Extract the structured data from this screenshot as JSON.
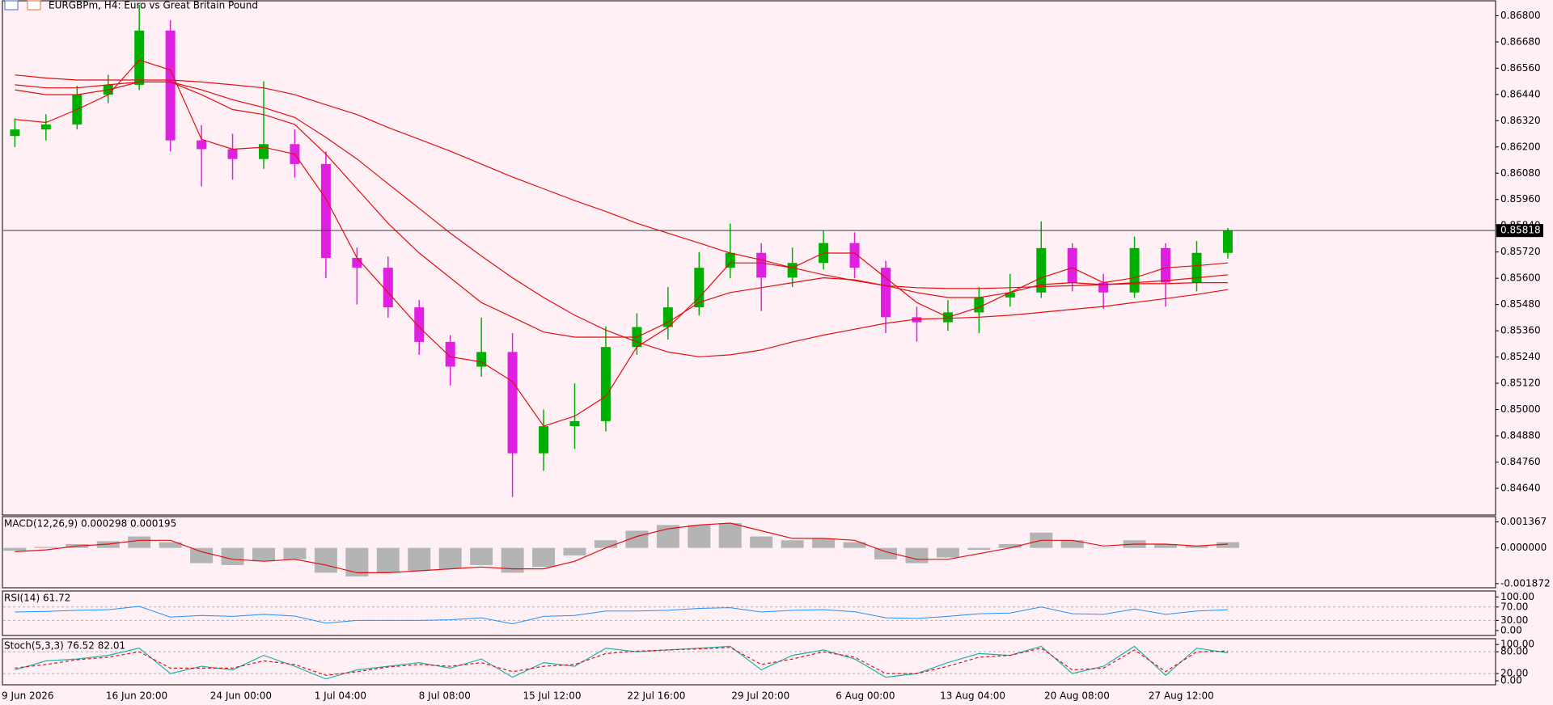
{
  "header": {
    "title": "EURGBPm, H4:  Euro vs Great Britain Pound"
  },
  "chart_data": [
    {
      "type": "candlestick",
      "up_color": "#00b000",
      "down_color": "#e020e0",
      "open": [
        0.8625,
        0.8628,
        0.86303,
        0.86439,
        0.86484,
        0.86732,
        0.8623,
        0.8619,
        0.86145,
        0.86213,
        0.86122,
        0.85693,
        0.85648,
        0.85467,
        0.85309,
        0.85196,
        0.85263,
        0.848,
        0.84924,
        0.84947,
        0.85286,
        0.85377,
        0.85467,
        0.85648,
        0.85716,
        0.85603,
        0.8567,
        0.85761,
        0.85648,
        0.85422,
        0.85399,
        0.85444,
        0.85512,
        0.85535,
        0.85738,
        0.8558,
        0.85535,
        0.85738,
        0.8558,
        0.85716
      ],
      "high": [
        0.8633,
        0.8635,
        0.8648,
        0.8653,
        0.8685,
        0.8678,
        0.863,
        0.8626,
        0.865,
        0.8628,
        0.8618,
        0.8574,
        0.857,
        0.855,
        0.8534,
        0.8542,
        0.8535,
        0.85,
        0.8512,
        0.8538,
        0.8544,
        0.8556,
        0.8572,
        0.8585,
        0.8576,
        0.8574,
        0.8582,
        0.8581,
        0.8568,
        0.8547,
        0.855,
        0.8556,
        0.8562,
        0.8586,
        0.8576,
        0.8562,
        0.8579,
        0.8576,
        0.8577,
        0.8583
      ],
      "low": [
        0.862,
        0.8623,
        0.8628,
        0.864,
        0.8646,
        0.8618,
        0.8602,
        0.8605,
        0.861,
        0.8606,
        0.856,
        0.8548,
        0.8542,
        0.8525,
        0.8511,
        0.8515,
        0.846,
        0.8472,
        0.8482,
        0.849,
        0.8525,
        0.8532,
        0.8543,
        0.856,
        0.8545,
        0.8556,
        0.8564,
        0.856,
        0.8535,
        0.8531,
        0.8536,
        0.8535,
        0.8547,
        0.8551,
        0.8554,
        0.8546,
        0.8551,
        0.8547,
        0.8554,
        0.8569
      ],
      "close": [
        0.8628,
        0.86303,
        0.86439,
        0.86484,
        0.86732,
        0.8623,
        0.8619,
        0.86145,
        0.86213,
        0.86122,
        0.85693,
        0.85648,
        0.85467,
        0.85309,
        0.85196,
        0.85263,
        0.848,
        0.84924,
        0.84947,
        0.85286,
        0.85377,
        0.85467,
        0.85648,
        0.85716,
        0.85603,
        0.8567,
        0.85761,
        0.85648,
        0.85422,
        0.85399,
        0.85444,
        0.85512,
        0.85535,
        0.85738,
        0.8558,
        0.85535,
        0.85738,
        0.8558,
        0.85716,
        0.85818
      ],
      "series": [
        {
          "color": "#e01010",
          "values": [
            0.86529,
            0.86515,
            0.86506,
            0.86506,
            0.86506,
            0.86506,
            0.86497,
            0.86484,
            0.8647,
            0.86439,
            0.86393,
            0.86348,
            0.86289,
            0.86235,
            0.86181,
            0.86122,
            0.86063,
            0.86009,
            0.85955,
            0.85905,
            0.85851,
            0.85806,
            0.85761,
            0.85715,
            0.85684,
            0.85648,
            0.85616,
            0.85589,
            0.85566,
            0.85557,
            0.85553,
            0.85553,
            0.85557,
            0.85562,
            0.85566,
            0.85571,
            0.85575,
            0.85575,
            0.8558,
            0.8558
          ]
        },
        {
          "color": "#e01010",
          "values": [
            0.86484,
            0.8647,
            0.8647,
            0.86484,
            0.86497,
            0.86497,
            0.86461,
            0.86416,
            0.8638,
            0.86335,
            0.86244,
            0.86145,
            0.86032,
            0.85919,
            0.85806,
            0.85702,
            0.85602,
            0.85512,
            0.85431,
            0.85363,
            0.85309,
            0.85263,
            0.85241,
            0.8525,
            0.85272,
            0.85309,
            0.8534,
            0.85367,
            0.85394,
            0.85413,
            0.85417,
            0.85422,
            0.85431,
            0.85444,
            0.85458,
            0.85471,
            0.85489,
            0.85507,
            0.85526,
            0.85548
          ]
        },
        {
          "color": "#e01010",
          "values": [
            0.86461,
            0.86439,
            0.86439,
            0.86461,
            0.86497,
            0.86497,
            0.86439,
            0.86371,
            0.86348,
            0.86303,
            0.86167,
            0.86009,
            0.85851,
            0.85715,
            0.85602,
            0.85489,
            0.85422,
            0.85354,
            0.85331,
            0.85331,
            0.85331,
            0.85399,
            0.85489,
            0.85535,
            0.85557,
            0.8558,
            0.85602,
            0.85593,
            0.85566,
            0.85535,
            0.85512,
            0.85512,
            0.85535,
            0.85571,
            0.8558,
            0.85571,
            0.8558,
            0.85589,
            0.85602,
            0.85616
          ]
        },
        {
          "color": "#e01010",
          "values": [
            0.86326,
            0.86312,
            0.86371,
            0.86439,
            0.86597,
            0.86552,
            0.86235,
            0.8619,
            0.86199,
            0.86167,
            0.85964,
            0.85693,
            0.85535,
            0.85376,
            0.85241,
            0.85218,
            0.85128,
            0.84924,
            0.8497,
            0.8506,
            0.85286,
            0.85376,
            0.85512,
            0.8567,
            0.8567,
            0.85648,
            0.85715,
            0.85715,
            0.85602,
            0.85489,
            0.85422,
            0.85467,
            0.85535,
            0.85602,
            0.85648,
            0.8558,
            0.85602,
            0.85648,
            0.85657,
            0.8567
          ]
        }
      ],
      "last_price": 0.85818,
      "ylim": [
        0.84518,
        0.86868
      ],
      "yticks": [
        {
          "value": 0.868,
          "label": "0.86800"
        },
        {
          "value": 0.8668,
          "label": "0.86680"
        },
        {
          "value": 0.8656,
          "label": "0.86560"
        },
        {
          "value": 0.8644,
          "label": "0.86440"
        },
        {
          "value": 0.8632,
          "label": "0.86320"
        },
        {
          "value": 0.862,
          "label": "0.86200"
        },
        {
          "value": 0.8608,
          "label": "0.86080"
        },
        {
          "value": 0.8596,
          "label": "0.85960"
        },
        {
          "value": 0.8584,
          "label": "0.85840"
        },
        {
          "value": 0.8572,
          "label": "0.85720"
        },
        {
          "value": 0.856,
          "label": "0.85600"
        },
        {
          "value": 0.8548,
          "label": "0.85480"
        },
        {
          "value": 0.8536,
          "label": "0.85360"
        },
        {
          "value": 0.8524,
          "label": "0.85240"
        },
        {
          "value": 0.8512,
          "label": "0.85120"
        },
        {
          "value": 0.85,
          "label": "0.85000"
        },
        {
          "value": 0.8488,
          "label": "0.84880"
        },
        {
          "value": 0.8476,
          "label": "0.84760"
        },
        {
          "value": 0.8464,
          "label": "0.84640"
        }
      ],
      "time_labels": [
        "9 Jun 2026",
        "16 Jun 20:00",
        "24 Jun 00:00",
        "1 Jul 04:00",
        "8 Jul 08:00",
        "15 Jul 12:00",
        "22 Jul 16:00",
        "29 Jul 20:00",
        "6 Aug 00:00",
        "13 Aug 04:00",
        "20 Aug 08:00",
        "27 Aug 12:00"
      ]
    },
    {
      "type": "macd",
      "title": "MACD(12,26,9) 0.000298 0.000195",
      "histogram_color": "#b4b4b4",
      "signal_color": "#e01010",
      "histogram": [
        -0.00015,
        5e-05,
        0.0002,
        0.00035,
        0.0006,
        0.0003,
        -0.0008,
        -0.0009,
        -0.0007,
        -0.0006,
        -0.0013,
        -0.0015,
        -0.0013,
        -0.0012,
        -0.0011,
        -0.0009,
        -0.0013,
        -0.001,
        -0.0004,
        0.0004,
        0.0009,
        0.0012,
        0.0012,
        0.0013,
        0.0006,
        0.0004,
        0.0005,
        0.0003,
        -0.0006,
        -0.0008,
        -0.0005,
        -0.0001,
        0.0002,
        0.0008,
        0.0004,
        0.0,
        0.0004,
        0.0002,
        0.0001,
        0.0003
      ],
      "signal": [
        -0.0002,
        -0.0001,
        0.0001,
        0.0002,
        0.0004,
        0.0004,
        -0.0002,
        -0.0006,
        -0.0007,
        -0.0006,
        -0.0009,
        -0.0013,
        -0.0013,
        -0.0012,
        -0.0011,
        -0.001,
        -0.0011,
        -0.0011,
        -0.0007,
        0.0,
        0.0006,
        0.001,
        0.0012,
        0.0013,
        0.0009,
        0.0005,
        0.0005,
        0.0004,
        -0.0002,
        -0.0006,
        -0.0006,
        -0.0003,
        0.0,
        0.0004,
        0.0004,
        0.0001,
        0.0002,
        0.0002,
        0.0001,
        0.0002
      ],
      "ylim": [
        -0.00209,
        0.00164
      ],
      "yticks": [
        0.001367,
        {
          "value": 0,
          "label": "0.000000"
        },
        -0.001872
      ]
    },
    {
      "type": "rsi",
      "title": "RSI(14) 61.72",
      "color": "#1e90ff",
      "values": [
        55,
        57,
        60,
        62,
        72,
        40,
        45,
        42,
        48,
        43,
        22,
        30,
        30,
        30,
        32,
        38,
        20,
        42,
        45,
        58,
        58,
        60,
        66,
        68,
        55,
        60,
        62,
        56,
        38,
        36,
        42,
        50,
        52,
        70,
        50,
        48,
        64,
        48,
        58,
        62
      ],
      "ylim": [
        -14.7,
        117.6
      ],
      "yticks": [
        {
          "value": 100,
          "label": "100.00"
        },
        {
          "value": 70,
          "label": "70.00"
        },
        {
          "value": 30,
          "label": "30.00"
        },
        {
          "value": 0,
          "label": "0.00"
        }
      ]
    },
    {
      "type": "stoch",
      "title": "Stoch(5,3,3) 76.52 82.01",
      "series": [
        {
          "color": "#20b2aa",
          "values": [
            30,
            55,
            60,
            70,
            90,
            20,
            40,
            30,
            70,
            40,
            5,
            30,
            40,
            50,
            35,
            60,
            10,
            50,
            40,
            90,
            80,
            85,
            90,
            95,
            30,
            70,
            85,
            60,
            10,
            20,
            50,
            75,
            70,
            95,
            20,
            40,
            95,
            15,
            90,
            77
          ]
        },
        {
          "color": "#e01010",
          "dashed": true,
          "values": [
            35,
            45,
            58,
            65,
            80,
            35,
            35,
            35,
            55,
            45,
            15,
            25,
            38,
            45,
            40,
            50,
            25,
            40,
            45,
            75,
            82,
            85,
            88,
            92,
            45,
            60,
            80,
            65,
            20,
            20,
            40,
            65,
            70,
            90,
            30,
            35,
            85,
            25,
            80,
            82
          ]
        }
      ],
      "ylim": [
        -11,
        116
      ],
      "yticks": [
        {
          "value": 100,
          "label": "100.00"
        },
        {
          "value": 80,
          "label": "80.00"
        },
        {
          "value": 20,
          "label": "20.00"
        },
        {
          "value": 0,
          "label": "0.00"
        }
      ]
    }
  ]
}
